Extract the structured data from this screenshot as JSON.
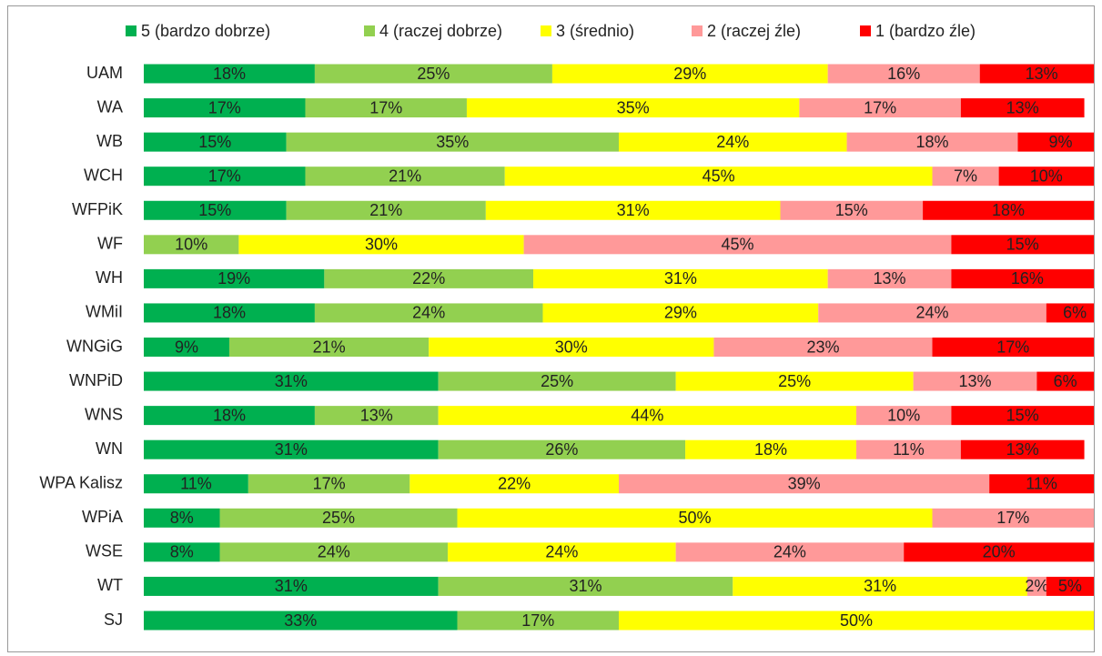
{
  "chart_data": {
    "type": "bar",
    "orientation": "horizontal",
    "stacked": true,
    "categories": [
      "UAM",
      "WA",
      "WB",
      "WCH",
      "WFPiK",
      "WF",
      "WH",
      "WMiI",
      "WNGiG",
      "WNPiD",
      "WNS",
      "WN",
      "WPA Kalisz",
      "WPiA",
      "WSE",
      "WT",
      "SJ"
    ],
    "xlim": [
      0,
      100
    ],
    "legend": "top",
    "series": [
      {
        "name": "5 (bardzo dobrze)",
        "color": "#00b050",
        "values": [
          18,
          17,
          15,
          17,
          15,
          null,
          19,
          18,
          9,
          31,
          18,
          31,
          11,
          8,
          8,
          31,
          33
        ],
        "value_labels": [
          "18%",
          "17%",
          "15%",
          "17%",
          "15%",
          null,
          "19%",
          "18%",
          "9%",
          "31%",
          "18%",
          "31%",
          "11%",
          "8%",
          "8%",
          "31%",
          "33%"
        ]
      },
      {
        "name": "4 (raczej dobrze)",
        "color": "#92d050",
        "values": [
          25,
          17,
          35,
          21,
          21,
          10,
          22,
          24,
          21,
          25,
          13,
          26,
          17,
          25,
          24,
          31,
          17
        ],
        "value_labels": [
          "25%",
          "17%",
          "35%",
          "21%",
          "21%",
          "10%",
          "22%",
          "24%",
          "21%",
          "25%",
          "13%",
          "26%",
          "17%",
          "25%",
          "24%",
          "31%",
          "17%"
        ]
      },
      {
        "name": "3 (średnio)",
        "color": "#ffff00",
        "values": [
          29,
          35,
          24,
          45,
          31,
          30,
          31,
          29,
          30,
          25,
          44,
          18,
          22,
          50,
          24,
          31,
          50
        ],
        "value_labels": [
          "29%",
          "35%",
          "24%",
          "45%",
          "31%",
          "30%",
          "31%",
          "29%",
          "30%",
          "25%",
          "44%",
          "18%",
          "22%",
          "50%",
          "24%",
          "31%",
          "50%"
        ]
      },
      {
        "name": "2 (raczej źle)",
        "color": "#ff9999",
        "values": [
          16,
          17,
          18,
          7,
          15,
          45,
          13,
          24,
          23,
          13,
          10,
          11,
          39,
          17,
          24,
          2,
          null
        ],
        "value_labels": [
          "16%",
          "17%",
          "18%",
          "7%",
          "15%",
          "45%",
          "13%",
          "24%",
          "23%",
          "13%",
          "10%",
          "11%",
          "39%",
          "17%",
          "24%",
          "2%",
          null
        ]
      },
      {
        "name": "1 (bardzo źle)",
        "color": "#ff0000",
        "values": [
          13,
          13,
          9,
          10,
          18,
          15,
          16,
          6,
          17,
          6,
          15,
          13,
          11,
          null,
          20,
          5,
          null
        ],
        "value_labels": [
          "13%",
          "13%",
          "9%",
          "10%",
          "18%",
          "15%",
          "16%",
          "6%",
          "17%",
          "6%",
          "15%",
          "13%",
          "11%",
          null,
          "20%",
          "5%",
          null
        ]
      }
    ]
  }
}
